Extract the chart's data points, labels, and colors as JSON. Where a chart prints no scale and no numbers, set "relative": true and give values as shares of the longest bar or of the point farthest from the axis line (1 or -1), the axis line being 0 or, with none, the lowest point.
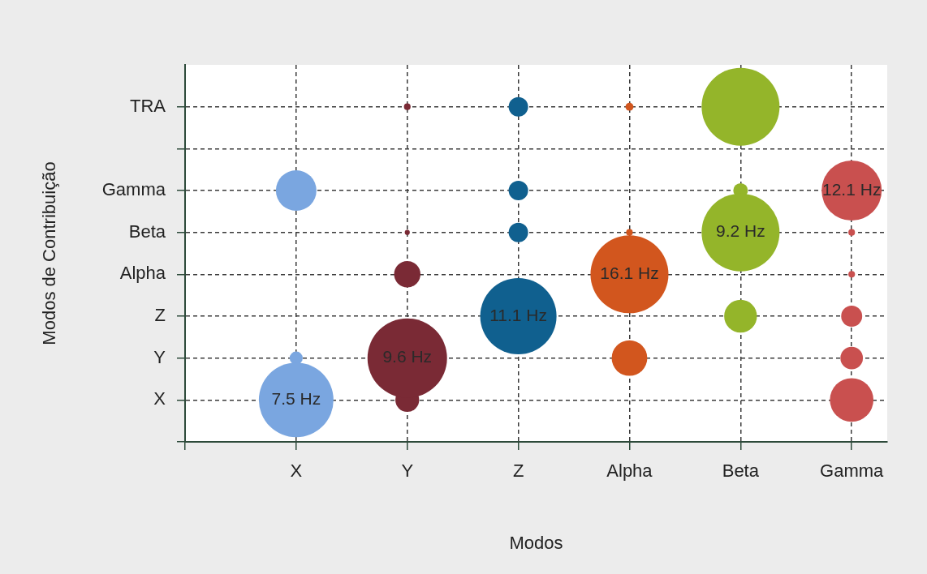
{
  "chart_data": {
    "type": "bubble",
    "xlabel": "Modos",
    "categories": [
      "X",
      "Y",
      "Z",
      "Alpha",
      "Beta",
      "Gamma"
    ],
    "y_categories": [
      "TRA",
      null,
      "Gamma",
      "Beta",
      "Alpha",
      "Z",
      "Y",
      "X"
    ],
    "relative": true,
    "grid": true,
    "series": [
      {
        "color": "#7aa6e0",
        "x": [
          "X",
          "X",
          "X"
        ],
        "values": [
          0.75,
          0.25,
          0.125
        ],
        "sizes": [
          0.26,
          0.027,
          0.88
        ]
      },
      {
        "color": "#7a2a35",
        "x": [
          "Y",
          "Y",
          "Y",
          "Y",
          "Y"
        ],
        "values": [
          1,
          0.625,
          0.5,
          0.125,
          0.25
        ],
        "sizes": [
          0.007,
          0.004,
          0.11,
          0.09,
          1
        ]
      },
      {
        "color": "#10608f",
        "x": [
          "Z",
          "Z",
          "Z",
          "Z"
        ],
        "values": [
          1,
          0.75,
          0.625,
          0.375
        ],
        "sizes": [
          0.06,
          0.06,
          0.06,
          0.92
        ]
      },
      {
        "color": "#d2561e",
        "x": [
          "Alpha",
          "Alpha",
          "Alpha",
          "Alpha"
        ],
        "values": [
          1,
          0.625,
          0.5,
          0.25
        ],
        "sizes": [
          0.01,
          0.007,
          0.96,
          0.2
        ]
      },
      {
        "color": "#94b52a",
        "x": [
          "Beta",
          "Beta",
          "Beta",
          "Beta"
        ],
        "values": [
          1,
          0.75,
          0.625,
          0.375
        ],
        "sizes": [
          0.96,
          0.034,
          0.96,
          0.17
        ]
      },
      {
        "color": "#c9504f",
        "x": [
          "Gamma",
          "Gamma",
          "Gamma",
          "Gamma",
          "Gamma",
          "Gamma"
        ],
        "values": [
          0.75,
          0.625,
          0.5,
          0.375,
          0.25,
          0.125
        ],
        "sizes": [
          0.57,
          0.007,
          0.007,
          0.07,
          0.08,
          0.3
        ]
      }
    ],
    "annotations": [
      "Modos de Contribuição",
      {
        "text": "7.5 Hz",
        "x": "X",
        "y": 0.125
      },
      {
        "text": "9.6 Hz",
        "x": "Y",
        "y": 0.25
      },
      {
        "text": "11.1 Hz",
        "x": "Z",
        "y": 0.375
      },
      {
        "text": "16.1 Hz",
        "x": "Alpha",
        "y": 0.5
      },
      {
        "text": "9.2 Hz",
        "x": "Beta",
        "y": 0.625
      },
      {
        "text": "12.1 Hz",
        "x": "Gamma",
        "y": 0.75
      }
    ]
  }
}
